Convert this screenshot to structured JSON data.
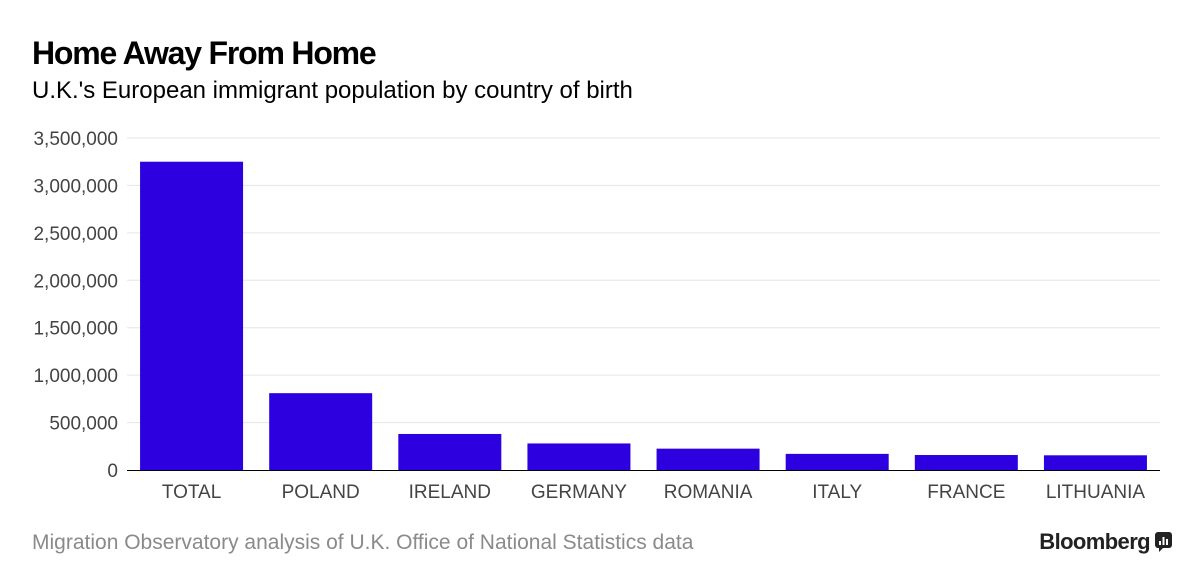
{
  "header": {
    "title": "Home Away From Home",
    "subtitle": "U.K.'s European immigrant population by country of birth"
  },
  "footer": {
    "source": "Migration Observatory analysis of U.K. Office of National Statistics data",
    "brand": "Bloomberg",
    "brand_icon": "bloomberg-chart-icon"
  },
  "colors": {
    "bar": "#2d00df",
    "grid": "#e6e6e6",
    "axis": "#000000",
    "tick_label": "#444444"
  },
  "chart_data": {
    "type": "bar",
    "title": "Home Away From Home",
    "subtitle": "U.K.'s European immigrant population by country of birth",
    "categories": [
      "TOTAL",
      "POLAND",
      "IRELAND",
      "GERMANY",
      "ROMANIA",
      "ITALY",
      "FRANCE",
      "LITHUANIA"
    ],
    "values": [
      3250000,
      810000,
      380000,
      280000,
      225000,
      170000,
      158000,
      155000
    ],
    "ylim": [
      0,
      3500000
    ],
    "yticks": [
      0,
      500000,
      1000000,
      1500000,
      2000000,
      2500000,
      3000000,
      3500000
    ],
    "ytick_labels": [
      "0",
      "500,000",
      "1,000,000",
      "1,500,000",
      "2,000,000",
      "2,500,000",
      "3,000,000",
      "3,500,000"
    ],
    "xlabel": "",
    "ylabel": "",
    "grid": true,
    "legend": "none"
  }
}
